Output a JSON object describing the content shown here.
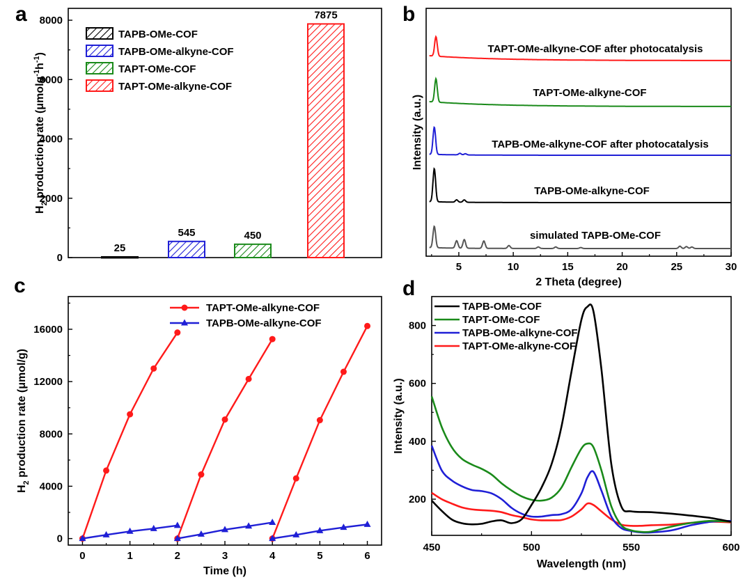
{
  "panels": {
    "a": "a",
    "b": "b",
    "c": "c",
    "d": "d"
  },
  "chart_data": [
    {
      "id": "a",
      "type": "bar",
      "categories": [
        "TAPB-OMe-COF",
        "TAPB-OMe-alkyne-COF",
        "TAPT-OMe-COF",
        "TAPT-OMe-alkyne-COF"
      ],
      "values": [
        25,
        545,
        450,
        7875
      ],
      "data_labels": [
        "25",
        "545",
        "450",
        "7875"
      ],
      "colors": [
        "#000000",
        "#1f1fd6",
        "#1a8a1a",
        "#ff1a1a"
      ],
      "legend": [
        "TAPB-OMe-COF",
        "TAPB-OMe-alkyne-COF",
        "TAPT-OMe-COF",
        "TAPT-OMe-alkyne-COF"
      ],
      "ylabel_parts": [
        "H",
        "2",
        " production rate (μmolg",
        "-1",
        "h",
        "-1",
        ")"
      ],
      "ylim": [
        0,
        8400
      ],
      "yticks": [
        0,
        2000,
        4000,
        6000,
        8000
      ],
      "ytick_labels": [
        "0",
        "2000",
        "4000",
        "6000",
        "8000"
      ]
    },
    {
      "id": "b",
      "type": "line",
      "xlabel": "2 Theta (degree)",
      "ylabel": "Intensity (a.u.)",
      "xlim": [
        2,
        30
      ],
      "xticks": [
        5,
        10,
        15,
        20,
        25,
        30
      ],
      "xtick_labels": [
        "5",
        "10",
        "15",
        "20",
        "25",
        "30"
      ],
      "series": [
        {
          "name": "TAPT-OMe-alkyne-COF after photocatalysis",
          "color": "#ff1a1a",
          "offset": 4,
          "peaks": [
            [
              2.9,
              1.0
            ]
          ]
        },
        {
          "name": "TAPT-OMe-alkyne-COF",
          "color": "#1a8a1a",
          "offset": 3,
          "peaks": [
            [
              2.9,
              1.2
            ]
          ]
        },
        {
          "name": "TAPB-OMe-alkyne-COF after photocatalysis",
          "color": "#1f1fd6",
          "offset": 2,
          "peaks": [
            [
              2.75,
              1.4
            ],
            [
              5.1,
              0.08
            ],
            [
              5.6,
              0.06
            ]
          ]
        },
        {
          "name": "TAPB-OMe-alkyne-COF",
          "color": "#000000",
          "offset": 1,
          "peaks": [
            [
              2.75,
              1.7
            ],
            [
              4.8,
              0.12
            ],
            [
              5.5,
              0.12
            ]
          ]
        },
        {
          "name": "simulated TAPB-OMe-COF",
          "color": "#555555",
          "offset": 0,
          "peaks": [
            [
              2.75,
              1.1
            ],
            [
              4.8,
              0.38
            ],
            [
              5.5,
              0.44
            ],
            [
              7.3,
              0.38
            ],
            [
              9.6,
              0.15
            ],
            [
              12.3,
              0.08
            ],
            [
              13.9,
              0.08
            ],
            [
              16.2,
              0.05
            ],
            [
              25.3,
              0.12
            ],
            [
              25.9,
              0.1
            ],
            [
              26.4,
              0.08
            ]
          ]
        }
      ]
    },
    {
      "id": "c",
      "type": "line",
      "xlabel": "Time (h)",
      "ylabel_parts": [
        "H",
        "2",
        " production rate (μmol/g)"
      ],
      "xlim": [
        -0.3,
        6.3
      ],
      "ylim": [
        -500,
        18500
      ],
      "xticks": [
        0,
        1,
        2,
        3,
        4,
        5,
        6
      ],
      "xtick_labels": [
        "0",
        "1",
        "2",
        "3",
        "4",
        "5",
        "6"
      ],
      "yticks": [
        0,
        4000,
        8000,
        12000,
        16000
      ],
      "ytick_labels": [
        "0",
        "4000",
        "8000",
        "12000",
        "16000"
      ],
      "series": [
        {
          "name": "TAPT-OMe-alkyne-COF",
          "color": "#ff1a1a",
          "marker": "circle",
          "cycles": [
            {
              "x": [
                0,
                0.5,
                1,
                1.5,
                2
              ],
              "y": [
                0,
                5200,
                9500,
                13000,
                15750
              ]
            },
            {
              "x": [
                2,
                2.5,
                3,
                3.5,
                4
              ],
              "y": [
                0,
                4900,
                9100,
                12200,
                15250
              ]
            },
            {
              "x": [
                4,
                4.5,
                5,
                5.5,
                6
              ],
              "y": [
                0,
                4600,
                9050,
                12750,
                16250
              ]
            }
          ]
        },
        {
          "name": "TAPB-OMe-alkyne-COF",
          "color": "#1f1fd6",
          "marker": "triangle",
          "cycles": [
            {
              "x": [
                0,
                0.5,
                1,
                1.5,
                2
              ],
              "y": [
                0,
                280,
                550,
                760,
                1000
              ]
            },
            {
              "x": [
                2,
                2.5,
                3,
                3.5,
                4
              ],
              "y": [
                0,
                330,
                680,
                950,
                1230
              ]
            },
            {
              "x": [
                4,
                4.5,
                5,
                5.5,
                6
              ],
              "y": [
                0,
                280,
                600,
                850,
                1080
              ]
            }
          ]
        }
      ]
    },
    {
      "id": "d",
      "type": "line",
      "xlabel": "Wavelength (nm)",
      "ylabel": "Intensity (a.u.)",
      "xlim": [
        450,
        600
      ],
      "ylim": [
        75,
        900
      ],
      "xticks": [
        450,
        500,
        550,
        600
      ],
      "xtick_labels": [
        "450",
        "500",
        "550",
        "600"
      ],
      "yticks": [
        200,
        400,
        600,
        800
      ],
      "ytick_labels": [
        "200",
        "400",
        "600",
        "800"
      ],
      "series": [
        {
          "name": "TAPB-OMe-COF",
          "color": "#000000",
          "x": [
            450,
            455,
            460,
            465,
            470,
            475,
            480,
            485,
            490,
            495,
            500,
            505,
            510,
            515,
            520,
            525,
            528,
            531,
            535,
            540,
            545,
            550,
            560,
            570,
            580,
            590,
            600
          ],
          "y": [
            195,
            160,
            130,
            117,
            113,
            115,
            123,
            127,
            117,
            130,
            180,
            240,
            320,
            450,
            640,
            820,
            865,
            850,
            650,
            320,
            175,
            158,
            155,
            150,
            143,
            135,
            122
          ]
        },
        {
          "name": "TAPT-OMe-COF",
          "color": "#1a8a1a",
          "x": [
            450,
            455,
            460,
            465,
            470,
            475,
            480,
            485,
            490,
            495,
            500,
            505,
            510,
            515,
            520,
            525,
            528,
            531,
            535,
            540,
            545,
            550,
            555,
            560,
            570,
            580,
            590,
            600
          ],
          "y": [
            555,
            450,
            380,
            340,
            320,
            305,
            285,
            255,
            230,
            210,
            198,
            195,
            205,
            240,
            310,
            375,
            392,
            380,
            300,
            175,
            110,
            92,
            87,
            88,
            105,
            118,
            125,
            122
          ]
        },
        {
          "name": "TAPB-OMe-alkyne-COF",
          "color": "#1f1fd6",
          "x": [
            450,
            455,
            460,
            465,
            470,
            475,
            480,
            485,
            490,
            495,
            500,
            505,
            510,
            515,
            520,
            525,
            528,
            531,
            535,
            540,
            545,
            550,
            555,
            560,
            570,
            580,
            590,
            600
          ],
          "y": [
            385,
            300,
            265,
            245,
            232,
            228,
            220,
            200,
            170,
            150,
            140,
            140,
            145,
            148,
            165,
            220,
            275,
            295,
            230,
            140,
            100,
            90,
            85,
            85,
            92,
            110,
            122,
            125
          ]
        },
        {
          "name": "TAPT-OMe-alkyne-COF",
          "color": "#ff1a1a",
          "x": [
            450,
            455,
            460,
            465,
            470,
            475,
            480,
            485,
            490,
            495,
            500,
            505,
            510,
            515,
            520,
            525,
            528,
            531,
            535,
            540,
            545,
            550,
            555,
            560,
            570,
            580,
            590,
            600
          ],
          "y": [
            222,
            200,
            185,
            172,
            165,
            162,
            160,
            155,
            145,
            138,
            130,
            127,
            127,
            128,
            140,
            165,
            185,
            180,
            158,
            130,
            112,
            108,
            108,
            110,
            112,
            118,
            122,
            120
          ]
        }
      ]
    }
  ]
}
